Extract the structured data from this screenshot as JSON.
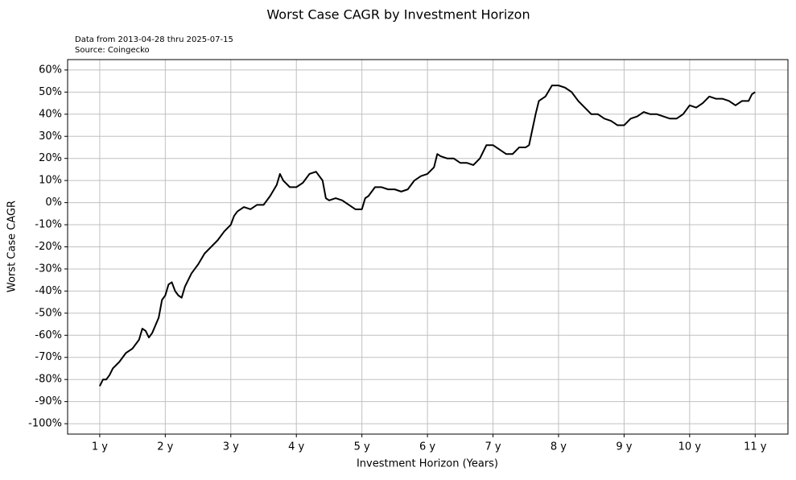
{
  "chart_data": {
    "type": "line",
    "title": "Worst Case CAGR by Investment Horizon",
    "subtitle": [
      "Data from 2013-04-28 thru 2025-07-15",
      "Source: Coingecko"
    ],
    "xlabel": "Investment Horizon (Years)",
    "ylabel": "Worst Case CAGR",
    "grid": true,
    "xlim": [
      0.51,
      11.5
    ],
    "ylim": [
      -104.7,
      64.7
    ],
    "xticks": [
      {
        "value": 1,
        "label": "1 y"
      },
      {
        "value": 2,
        "label": "2 y"
      },
      {
        "value": 3,
        "label": "3 y"
      },
      {
        "value": 4,
        "label": "4 y"
      },
      {
        "value": 5,
        "label": "5 y"
      },
      {
        "value": 6,
        "label": "6 y"
      },
      {
        "value": 7,
        "label": "7 y"
      },
      {
        "value": 8,
        "label": "8 y"
      },
      {
        "value": 9,
        "label": "9 y"
      },
      {
        "value": 10,
        "label": "10 y"
      },
      {
        "value": 11,
        "label": "11 y"
      }
    ],
    "yticks": [
      {
        "value": 60,
        "label": "60%"
      },
      {
        "value": 50,
        "label": "50%"
      },
      {
        "value": 40,
        "label": "40%"
      },
      {
        "value": 30,
        "label": "30%"
      },
      {
        "value": 20,
        "label": "20%"
      },
      {
        "value": 10,
        "label": "10%"
      },
      {
        "value": 0,
        "label": "0%"
      },
      {
        "value": -10,
        "label": "-10%"
      },
      {
        "value": -20,
        "label": "-20%"
      },
      {
        "value": -30,
        "label": "-30%"
      },
      {
        "value": -40,
        "label": "-40%"
      },
      {
        "value": -50,
        "label": "-50%"
      },
      {
        "value": -60,
        "label": "-60%"
      },
      {
        "value": -70,
        "label": "-70%"
      },
      {
        "value": -80,
        "label": "-80%"
      },
      {
        "value": -90,
        "label": "-90%"
      },
      {
        "value": -100,
        "label": "-100%"
      }
    ],
    "x": [
      1.0,
      1.05,
      1.1,
      1.15,
      1.2,
      1.3,
      1.4,
      1.5,
      1.6,
      1.65,
      1.7,
      1.75,
      1.8,
      1.9,
      1.95,
      2.0,
      2.05,
      2.1,
      2.15,
      2.2,
      2.25,
      2.3,
      2.4,
      2.5,
      2.6,
      2.7,
      2.8,
      2.9,
      3.0,
      3.05,
      3.1,
      3.2,
      3.3,
      3.4,
      3.5,
      3.6,
      3.7,
      3.75,
      3.8,
      3.9,
      4.0,
      4.1,
      4.2,
      4.3,
      4.4,
      4.45,
      4.5,
      4.6,
      4.7,
      4.8,
      4.9,
      5.0,
      5.05,
      5.1,
      5.2,
      5.3,
      5.4,
      5.5,
      5.6,
      5.7,
      5.8,
      5.9,
      6.0,
      6.1,
      6.15,
      6.2,
      6.3,
      6.4,
      6.5,
      6.6,
      6.7,
      6.8,
      6.9,
      7.0,
      7.1,
      7.2,
      7.3,
      7.4,
      7.5,
      7.55,
      7.6,
      7.65,
      7.7,
      7.8,
      7.9,
      8.0,
      8.1,
      8.2,
      8.3,
      8.4,
      8.5,
      8.6,
      8.7,
      8.8,
      8.9,
      9.0,
      9.1,
      9.2,
      9.3,
      9.4,
      9.5,
      9.6,
      9.7,
      9.8,
      9.9,
      10.0,
      10.1,
      10.2,
      10.3,
      10.4,
      10.5,
      10.6,
      10.7,
      10.8,
      10.9,
      10.95,
      11.0
    ],
    "series": [
      {
        "color": "#000000",
        "values": [
          -83,
          -80,
          -80,
          -78,
          -75,
          -72,
          -68,
          -66,
          -62,
          -57,
          -58,
          -61,
          -59,
          -52,
          -44,
          -42,
          -37,
          -36,
          -40,
          -42,
          -43,
          -38,
          -32,
          -28,
          -23,
          -20,
          -17,
          -13,
          -10,
          -6,
          -4,
          -2,
          -3,
          -1,
          -1,
          3,
          8,
          13,
          10,
          7,
          7,
          9,
          13,
          14,
          10,
          2,
          1,
          2,
          1,
          -1,
          -3,
          -3,
          2,
          3,
          7,
          7,
          6,
          6,
          5,
          6,
          10,
          12,
          13,
          16,
          22,
          21,
          20,
          20,
          18,
          18,
          17,
          20,
          26,
          26,
          24,
          22,
          22,
          25,
          25,
          26,
          33,
          40,
          46,
          48,
          53,
          53,
          52,
          50,
          46,
          43,
          40,
          40,
          38,
          37,
          35,
          35,
          38,
          39,
          41,
          40,
          40,
          39,
          38,
          38,
          40,
          44,
          43,
          45,
          48,
          47,
          47,
          46,
          44,
          46,
          46,
          49,
          50
        ]
      }
    ]
  }
}
